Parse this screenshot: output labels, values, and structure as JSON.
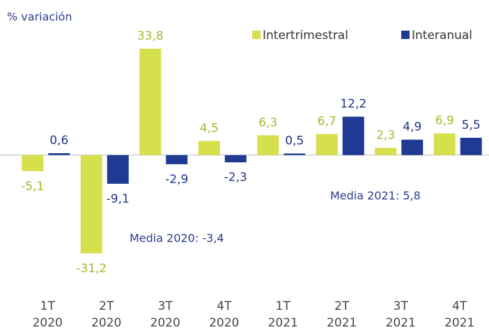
{
  "chart_data": {
    "type": "bar",
    "y_label": "% variación",
    "categories": [
      "1T 2020",
      "2T 2020",
      "3T 2020",
      "4T 2020",
      "1T 2021",
      "2T 2021",
      "3T 2021",
      "4T 2021"
    ],
    "series": [
      {
        "name": "Intertrimestral",
        "color": "#d6e04c",
        "label_color": "#a9b52a",
        "values": [
          -5.1,
          -31.2,
          33.8,
          4.5,
          6.3,
          6.7,
          2.3,
          6.9
        ],
        "value_labels": [
          "-5,1",
          "-31,2",
          "33,8",
          "4,5",
          "6,3",
          "6,7",
          "2,3",
          "6,9"
        ]
      },
      {
        "name": "Interanual",
        "color": "#1f3a93",
        "label_color": "#22338a",
        "values": [
          0.6,
          -9.1,
          -2.9,
          -2.3,
          0.5,
          12.2,
          4.9,
          5.5
        ],
        "value_labels": [
          "0,6",
          "-9,1",
          "-2,9",
          "-2,3",
          "0,5",
          "12,2",
          "4,9",
          "5,5"
        ]
      }
    ],
    "ylim": [
      -33,
      36
    ],
    "annotations": [
      "Media 2020:  -3,4",
      "Media 2021:  5,8"
    ]
  }
}
